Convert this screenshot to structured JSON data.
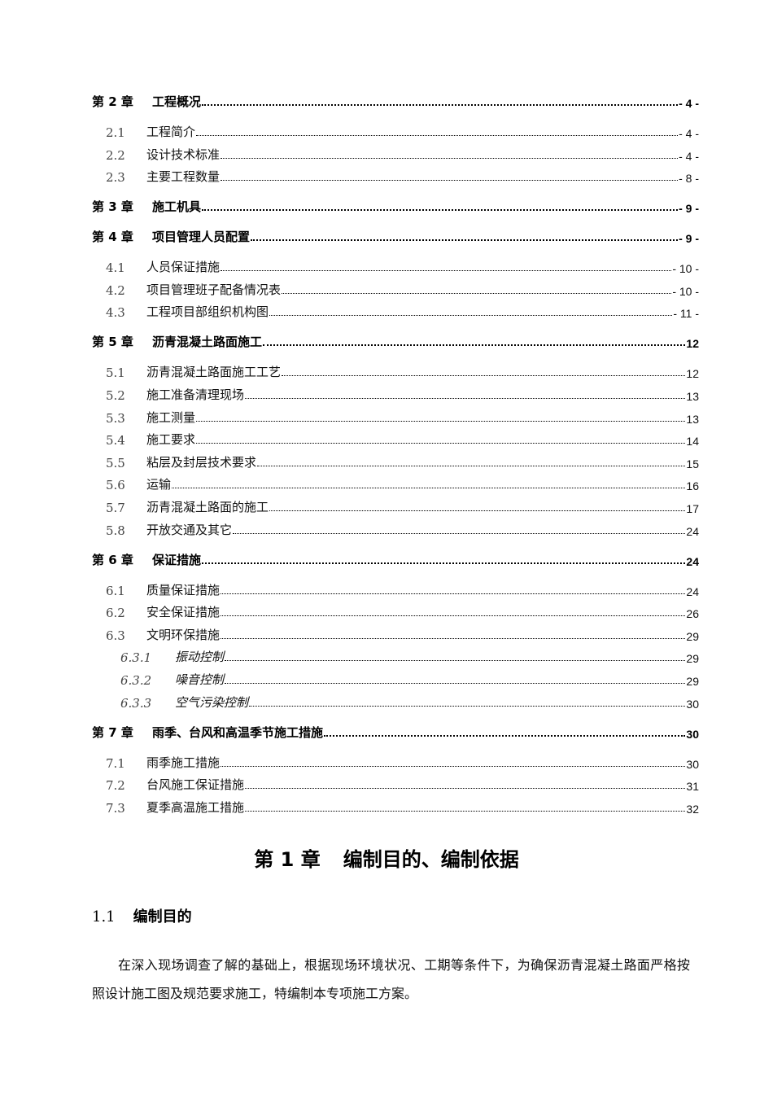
{
  "toc": [
    {
      "level": 1,
      "num": "第 2 章",
      "title": "工程概况",
      "page": "- 4 -"
    },
    {
      "level": 2,
      "num": "2.1",
      "title": "工程简介",
      "page": "- 4 -"
    },
    {
      "level": 2,
      "num": "2.2",
      "title": "设计技术标准",
      "page": "- 4 -"
    },
    {
      "level": 2,
      "num": "2.3",
      "title": "主要工程数量",
      "page": "- 8 -"
    },
    {
      "level": 1,
      "num": "第 3 章",
      "title": "施工机具",
      "page": "- 9 -"
    },
    {
      "level": 1,
      "num": "第 4 章",
      "title": "项目管理人员配置",
      "page": "- 9 -"
    },
    {
      "level": 2,
      "num": "4.1",
      "title": "人员保证措施",
      "page": "- 10 -"
    },
    {
      "level": 2,
      "num": "4.2",
      "title": "项目管理班子配备情况表",
      "page": "- 10 -"
    },
    {
      "level": 2,
      "num": "4.3",
      "title": "工程项目部组织机构图",
      "page": "- 11 -"
    },
    {
      "level": 1,
      "num": "第 5 章",
      "title": "沥青混凝土路面施工",
      "page": "12"
    },
    {
      "level": 2,
      "num": "5.1",
      "title": "沥青混凝土路面施工工艺",
      "page": "12"
    },
    {
      "level": 2,
      "num": "5.2",
      "title": "施工准备清理现场",
      "page": "13"
    },
    {
      "level": 2,
      "num": "5.3",
      "title": "施工测量",
      "page": "13"
    },
    {
      "level": 2,
      "num": "5.4",
      "title": "施工要求",
      "page": "14"
    },
    {
      "level": 2,
      "num": "5.5",
      "title": "粘层及封层技术要求",
      "page": "15"
    },
    {
      "level": 2,
      "num": "5.6",
      "title": "运输",
      "page": "16"
    },
    {
      "level": 2,
      "num": "5.7",
      "title": "沥青混凝土路面的施工",
      "page": "17"
    },
    {
      "level": 2,
      "num": "5.8",
      "title": "开放交通及其它",
      "page": "24"
    },
    {
      "level": 1,
      "num": "第 6 章",
      "title": "保证措施",
      "page": "24"
    },
    {
      "level": 2,
      "num": "6.1",
      "title": "质量保证措施",
      "page": "24"
    },
    {
      "level": 2,
      "num": "6.2",
      "title": "安全保证措施",
      "page": "26"
    },
    {
      "level": 2,
      "num": "6.3",
      "title": "文明环保措施",
      "page": "29"
    },
    {
      "level": 3,
      "num": "6.3.1",
      "title": "振动控制",
      "page": "29"
    },
    {
      "level": 3,
      "num": "6.3.2",
      "title": "噪音控制",
      "page": "29"
    },
    {
      "level": 3,
      "num": "6.3.3",
      "title": "空气污染控制",
      "page": "30"
    },
    {
      "level": 1,
      "num": "第 7 章",
      "title": "雨季、台风和高温季节施工措施",
      "page": "30"
    },
    {
      "level": 2,
      "num": "7.1",
      "title": "雨季施工措施",
      "page": "30"
    },
    {
      "level": 2,
      "num": "7.2",
      "title": "台风施工保证措施",
      "page": "31"
    },
    {
      "level": 2,
      "num": "7.3",
      "title": "夏季高温施工措施",
      "page": "32"
    }
  ],
  "chapter": {
    "num": "第 1 章",
    "title": "编制目的、编制依据"
  },
  "section": {
    "num": "1.1",
    "title": "编制目的"
  },
  "paragraph": "在深入现场调查了解的基础上，根据现场环境状况、工期等条件下，为确保沥青混凝土路面严格按照设计施工图及规范要求施工，特编制本专项施工方案。"
}
